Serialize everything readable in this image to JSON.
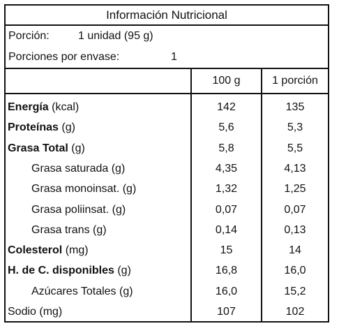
{
  "title": "Información Nutricional",
  "serving": {
    "portion_label": "Porción:",
    "portion_value": "1 unidad (95 g)",
    "per_container_label": "Porciones por envase:",
    "per_container_value": "1"
  },
  "columns": [
    "100 g",
    "1 porción"
  ],
  "rows": [
    {
      "bold": "Energía",
      "rest": " (kcal)",
      "v100": "142",
      "vpor": "135",
      "indent": false
    },
    {
      "bold": "Proteínas",
      "rest": " (g)",
      "v100": "5,6",
      "vpor": "5,3",
      "indent": false
    },
    {
      "bold": "Grasa Total",
      "rest": " (g)",
      "v100": "5,8",
      "vpor": "5,5",
      "indent": false
    },
    {
      "bold": "",
      "rest": "Grasa saturada (g)",
      "v100": "4,35",
      "vpor": "4,13",
      "indent": true
    },
    {
      "bold": "",
      "rest": "Grasa monoinsat. (g)",
      "v100": "1,32",
      "vpor": "1,25",
      "indent": true
    },
    {
      "bold": "",
      "rest": "Grasa poliinsat. (g)",
      "v100": "0,07",
      "vpor": "0,07",
      "indent": true
    },
    {
      "bold": "",
      "rest": "Grasa trans (g)",
      "v100": "0,14",
      "vpor": "0,13",
      "indent": true
    },
    {
      "bold": "Colesterol",
      "rest": " (mg)",
      "v100": "15",
      "vpor": "14",
      "indent": false
    },
    {
      "bold": "H. de C. disponibles",
      "rest": " (g)",
      "v100": "16,8",
      "vpor": "16,0",
      "indent": false
    },
    {
      "bold": "",
      "rest": "Azúcares Totales (g)",
      "v100": "16,0",
      "vpor": "15,2",
      "indent": true
    },
    {
      "bold": "",
      "rest": "Sodio (mg)",
      "v100": "107",
      "vpor": "102",
      "indent": false
    }
  ]
}
